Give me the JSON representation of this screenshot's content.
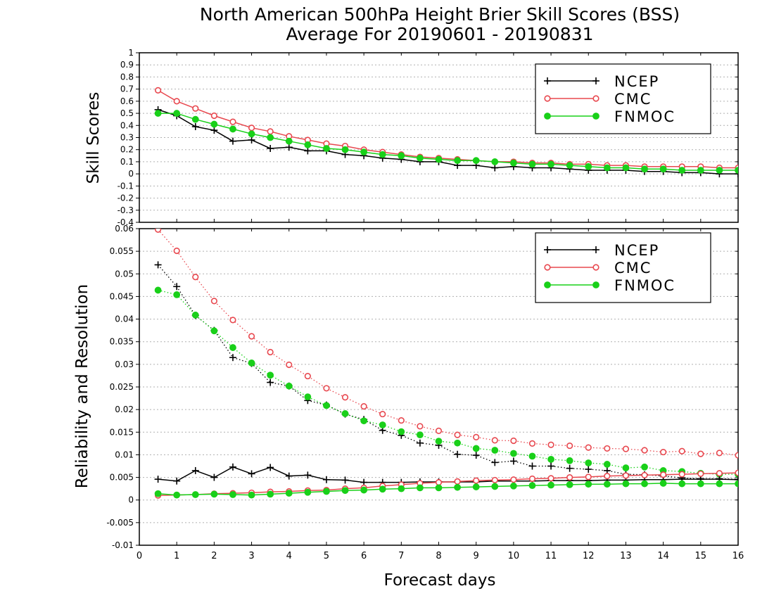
{
  "title_line1": "North American 500hPa Height Brier Skill Scores (BSS)",
  "title_line2": "Average For 20190601 - 20190831",
  "xlabel": "Forecast days",
  "colors": {
    "NCEP": "#000000",
    "CMC": "#e8484f",
    "FNMOC": "#19d019"
  },
  "chart_data": [
    {
      "type": "line",
      "ylabel": "Skill Scores",
      "xlim": [
        0,
        16
      ],
      "ylim": [
        -0.4,
        1
      ],
      "yticks": [
        -0.4,
        -0.3,
        -0.2,
        -0.1,
        0,
        0.1,
        0.2,
        0.3,
        0.4,
        0.5,
        0.6,
        0.7,
        0.8,
        0.9,
        1
      ],
      "ytick_labels": [
        "-0.4",
        "-0.3",
        "-0.2",
        "-0.1",
        "0",
        "0.1",
        "0.2",
        "0.3",
        "0.4",
        "0.5",
        "0.6",
        "0.7",
        "0.8",
        "0.9",
        "1"
      ],
      "grid": true,
      "legend": "top-right",
      "x": [
        0.5,
        1,
        1.5,
        2,
        2.5,
        3,
        3.5,
        4,
        4.5,
        5,
        5.5,
        6,
        6.5,
        7,
        7.5,
        8,
        8.5,
        9,
        9.5,
        10,
        10.5,
        11,
        11.5,
        12,
        12.5,
        13,
        13.5,
        14,
        14.5,
        15,
        15.5,
        16
      ],
      "series": [
        {
          "name": "NCEP",
          "marker": "plus",
          "style": "solid",
          "values": [
            0.53,
            0.48,
            0.39,
            0.36,
            0.27,
            0.28,
            0.21,
            0.22,
            0.19,
            0.19,
            0.16,
            0.15,
            0.13,
            0.12,
            0.1,
            0.1,
            0.07,
            0.07,
            0.05,
            0.06,
            0.05,
            0.05,
            0.04,
            0.03,
            0.03,
            0.03,
            0.02,
            0.02,
            0.01,
            0.01,
            0.0,
            0.0
          ]
        },
        {
          "name": "CMC",
          "marker": "open-circle",
          "style": "solid",
          "values": [
            0.69,
            0.6,
            0.54,
            0.48,
            0.43,
            0.38,
            0.35,
            0.31,
            0.28,
            0.25,
            0.23,
            0.2,
            0.18,
            0.16,
            0.14,
            0.13,
            0.12,
            0.11,
            0.1,
            0.1,
            0.09,
            0.09,
            0.08,
            0.08,
            0.07,
            0.07,
            0.06,
            0.06,
            0.06,
            0.06,
            0.05,
            0.05
          ]
        },
        {
          "name": "FNMOC",
          "marker": "filled-circle",
          "style": "solid",
          "values": [
            0.5,
            0.5,
            0.45,
            0.41,
            0.37,
            0.33,
            0.3,
            0.27,
            0.24,
            0.21,
            0.2,
            0.18,
            0.16,
            0.15,
            0.13,
            0.12,
            0.11,
            0.11,
            0.1,
            0.09,
            0.08,
            0.08,
            0.07,
            0.06,
            0.05,
            0.05,
            0.04,
            0.04,
            0.03,
            0.03,
            0.03,
            0.03
          ]
        }
      ]
    },
    {
      "type": "line",
      "ylabel": "Reliability and Resolution",
      "xlim": [
        0,
        16
      ],
      "ylim": [
        -0.01,
        0.06
      ],
      "yticks": [
        -0.01,
        -0.005,
        0,
        0.005,
        0.01,
        0.015,
        0.02,
        0.025,
        0.03,
        0.035,
        0.04,
        0.045,
        0.05,
        0.055,
        0.06
      ],
      "ytick_labels": [
        "-0.01",
        "-0.005",
        "0",
        "0.005",
        "0.01",
        "0.015",
        "0.02",
        "0.025",
        "0.03",
        "0.035",
        "0.04",
        "0.045",
        "0.05",
        "0.055",
        "0.06"
      ],
      "xticks": [
        0,
        1,
        2,
        3,
        4,
        5,
        6,
        7,
        8,
        9,
        10,
        11,
        12,
        13,
        14,
        15,
        16
      ],
      "xtick_labels": [
        "0",
        "1",
        "2",
        "3",
        "4",
        "5",
        "6",
        "7",
        "8",
        "9",
        "10",
        "11",
        "12",
        "13",
        "14",
        "15",
        "16"
      ],
      "grid": true,
      "legend": "top-right",
      "x": [
        0.5,
        1,
        1.5,
        2,
        2.5,
        3,
        3.5,
        4,
        4.5,
        5,
        5.5,
        6,
        6.5,
        7,
        7.5,
        8,
        8.5,
        9,
        9.5,
        10,
        10.5,
        11,
        11.5,
        12,
        12.5,
        13,
        13.5,
        14,
        14.5,
        15,
        15.5,
        16
      ],
      "series": [
        {
          "name": "NCEP",
          "marker": "plus",
          "style": "dotted",
          "values": [
            0.052,
            0.0472,
            0.0408,
            0.0375,
            0.0315,
            0.0302,
            0.026,
            0.0252,
            0.022,
            0.021,
            0.019,
            0.0178,
            0.0154,
            0.0143,
            0.0126,
            0.0121,
            0.0101,
            0.0099,
            0.0083,
            0.0086,
            0.0075,
            0.0075,
            0.007,
            0.0068,
            0.0065,
            0.0057,
            0.0056,
            0.0053,
            0.0049,
            0.0047,
            0.0047,
            0.0046
          ]
        },
        {
          "name": "CMC",
          "marker": "open-circle",
          "style": "dotted",
          "values": [
            0.0598,
            0.0551,
            0.0493,
            0.044,
            0.0398,
            0.0362,
            0.0327,
            0.0299,
            0.0274,
            0.0247,
            0.0227,
            0.0207,
            0.019,
            0.0176,
            0.0163,
            0.0153,
            0.0144,
            0.0139,
            0.0132,
            0.0131,
            0.0125,
            0.0122,
            0.012,
            0.0116,
            0.0114,
            0.0113,
            0.011,
            0.0106,
            0.0108,
            0.0102,
            0.0104,
            0.0099
          ]
        },
        {
          "name": "FNMOC",
          "marker": "filled-circle",
          "style": "dotted",
          "values": [
            0.0464,
            0.0454,
            0.0409,
            0.0374,
            0.0337,
            0.0303,
            0.0276,
            0.0252,
            0.0228,
            0.0209,
            0.0191,
            0.0175,
            0.0166,
            0.0151,
            0.0144,
            0.013,
            0.0126,
            0.0114,
            0.011,
            0.0103,
            0.0097,
            0.009,
            0.0087,
            0.0082,
            0.0079,
            0.0071,
            0.0073,
            0.0065,
            0.0063,
            0.0059,
            0.0057,
            0.0057
          ]
        },
        {
          "name": "NCEP",
          "marker": "plus",
          "style": "solid",
          "values": [
            0.0046,
            0.0042,
            0.0065,
            0.005,
            0.0073,
            0.0058,
            0.0072,
            0.0053,
            0.0055,
            0.0045,
            0.0044,
            0.0039,
            0.0039,
            0.0039,
            0.004,
            0.004,
            0.004,
            0.004,
            0.0042,
            0.0042,
            0.0042,
            0.0043,
            0.0043,
            0.0043,
            0.0044,
            0.0044,
            0.0045,
            0.0045,
            0.0046,
            0.0046,
            0.0046,
            0.0045
          ]
        },
        {
          "name": "CMC",
          "marker": "open-circle",
          "style": "solid",
          "values": [
            0.001,
            0.0011,
            0.0012,
            0.0014,
            0.0015,
            0.0016,
            0.0018,
            0.0019,
            0.0021,
            0.0022,
            0.0025,
            0.0027,
            0.0031,
            0.0034,
            0.0037,
            0.0039,
            0.0041,
            0.0043,
            0.0044,
            0.0045,
            0.0047,
            0.0048,
            0.005,
            0.0051,
            0.0053,
            0.0054,
            0.0055,
            0.0056,
            0.0057,
            0.0058,
            0.0059,
            0.006
          ]
        },
        {
          "name": "FNMOC",
          "marker": "filled-circle",
          "style": "solid",
          "values": [
            0.0014,
            0.0011,
            0.0012,
            0.0013,
            0.0012,
            0.0011,
            0.0013,
            0.0015,
            0.0017,
            0.0019,
            0.0021,
            0.0022,
            0.0024,
            0.0025,
            0.0027,
            0.0027,
            0.0028,
            0.0029,
            0.003,
            0.0031,
            0.0032,
            0.0033,
            0.0034,
            0.0035,
            0.0035,
            0.0036,
            0.0036,
            0.0037,
            0.0036,
            0.0036,
            0.0036,
            0.0036
          ]
        }
      ]
    }
  ]
}
